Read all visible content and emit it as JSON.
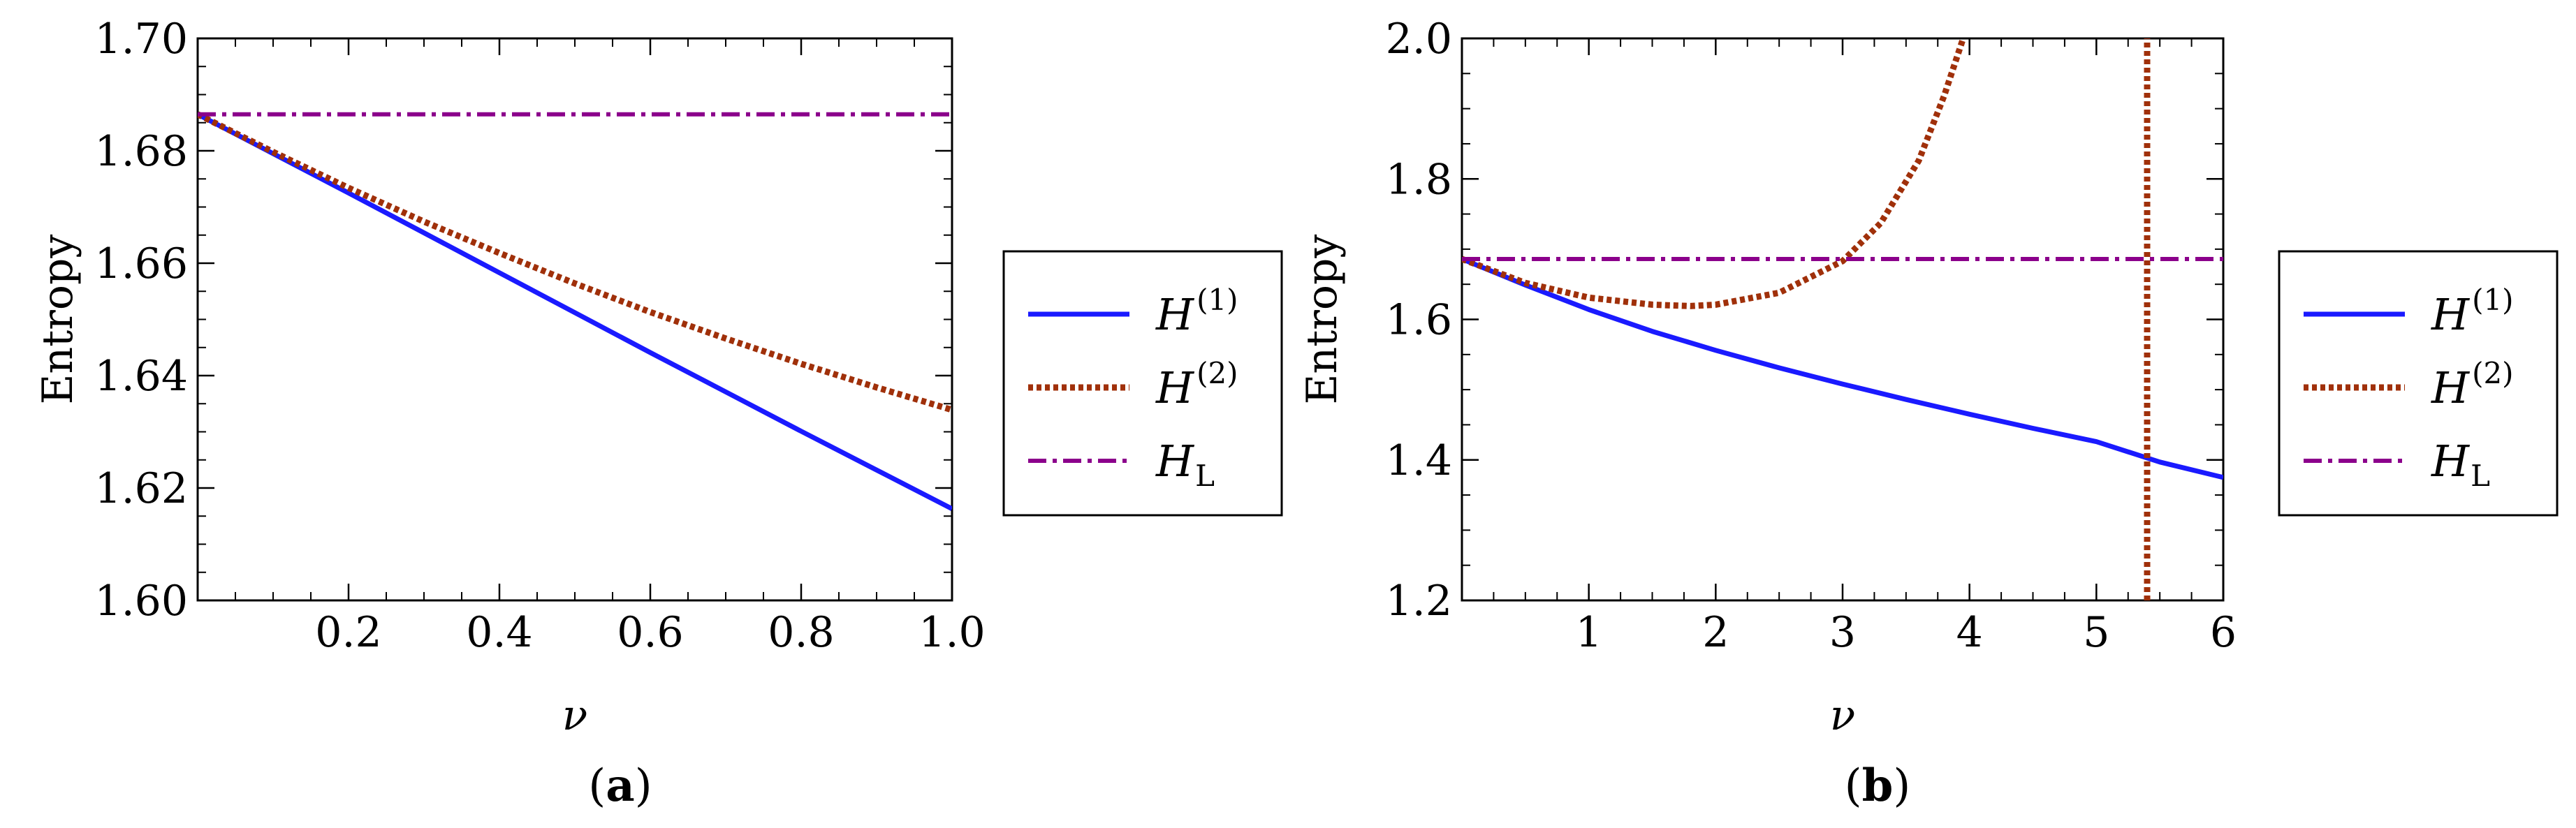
{
  "chart_data": [
    {
      "type": "line",
      "caption_letter": "a",
      "xlabel": "ν",
      "ylabel": "Entropy",
      "xlim": [
        0,
        1.0
      ],
      "ylim": [
        1.6,
        1.7
      ],
      "xticks": [
        "0.2",
        "0.4",
        "0.6",
        "0.8",
        "1.0"
      ],
      "xtick_values": [
        0.2,
        0.4,
        0.6,
        0.8,
        1.0
      ],
      "yticks": [
        "1.60",
        "1.62",
        "1.64",
        "1.66",
        "1.68",
        "1.70"
      ],
      "ytick_values": [
        1.6,
        1.62,
        1.64,
        1.66,
        1.68,
        1.7
      ],
      "legend_position": "right outside",
      "series": [
        {
          "name": "H(1)",
          "label_base": "H",
          "label_sup": "(1)",
          "label_sub": "",
          "color": "#1a1aff",
          "dash": "solid",
          "x": [
            0.0,
            0.1,
            0.2,
            0.3,
            0.4,
            0.5,
            0.6,
            0.7,
            0.8,
            0.9,
            1.0
          ],
          "y": [
            1.6865,
            1.6795,
            1.6725,
            1.6654,
            1.6583,
            1.6512,
            1.6441,
            1.6371,
            1.6301,
            1.6232,
            1.6163
          ]
        },
        {
          "name": "H(2)",
          "label_base": "H",
          "label_sup": "(2)",
          "label_sub": "",
          "color": "#a0300a",
          "dash": "dotted",
          "x": [
            0.0,
            0.1,
            0.2,
            0.3,
            0.4,
            0.5,
            0.6,
            0.7,
            0.8,
            0.9,
            1.0
          ],
          "y": [
            1.6865,
            1.6798,
            1.6734,
            1.6674,
            1.6618,
            1.6564,
            1.6513,
            1.6466,
            1.6421,
            1.6379,
            1.6339
          ]
        },
        {
          "name": "HL",
          "label_base": "H",
          "label_sup": "",
          "label_sub": "L",
          "color": "#8b008b",
          "dash": "dashdot",
          "x": [
            0.0,
            1.0
          ],
          "y": [
            1.6865,
            1.6865
          ]
        }
      ]
    },
    {
      "type": "line",
      "caption_letter": "b",
      "xlabel": "ν",
      "ylabel": "Entropy",
      "xlim": [
        0,
        6
      ],
      "ylim": [
        1.2,
        2.0
      ],
      "xticks": [
        "1",
        "2",
        "3",
        "4",
        "5",
        "6"
      ],
      "xtick_values": [
        1,
        2,
        3,
        4,
        5,
        6
      ],
      "yticks": [
        "1.2",
        "1.4",
        "1.6",
        "1.8",
        "2.0"
      ],
      "ytick_values": [
        1.2,
        1.4,
        1.6,
        1.8,
        2.0
      ],
      "legend_position": "right outside",
      "series": [
        {
          "name": "H(1)",
          "label_base": "H",
          "label_sup": "(1)",
          "label_sub": "",
          "color": "#1a1aff",
          "dash": "solid",
          "x": [
            0.0,
            0.5,
            1.0,
            1.5,
            2.0,
            2.5,
            3.0,
            3.5,
            4.0,
            4.5,
            5.0,
            5.5,
            6.0
          ],
          "y": [
            1.686,
            1.649,
            1.614,
            1.583,
            1.556,
            1.531,
            1.508,
            1.486,
            1.465,
            1.445,
            1.426,
            1.397,
            1.375
          ]
        },
        {
          "name": "H(2)",
          "label_base": "H",
          "label_sup": "(2)",
          "label_sub": "",
          "color": "#a0300a",
          "dash": "dotted",
          "x": [
            0.0,
            0.5,
            1.0,
            1.5,
            1.8,
            2.0,
            2.5,
            3.0,
            3.3,
            3.6,
            3.8,
            3.95
          ],
          "y": [
            1.686,
            1.652,
            1.631,
            1.621,
            1.619,
            1.621,
            1.638,
            1.683,
            1.737,
            1.826,
            1.918,
            2.0
          ]
        },
        {
          "name": "H(2) divergence",
          "label_base": "",
          "label_sup": "",
          "label_sub": "",
          "color": "#a0300a",
          "dash": "dotted",
          "x": [
            5.4,
            5.4
          ],
          "y": [
            1.2,
            2.0
          ]
        },
        {
          "name": "HL",
          "label_base": "H",
          "label_sup": "",
          "label_sub": "L",
          "color": "#8b008b",
          "dash": "dashdot",
          "x": [
            0.0,
            6.0
          ],
          "y": [
            1.686,
            1.686
          ]
        }
      ]
    }
  ]
}
